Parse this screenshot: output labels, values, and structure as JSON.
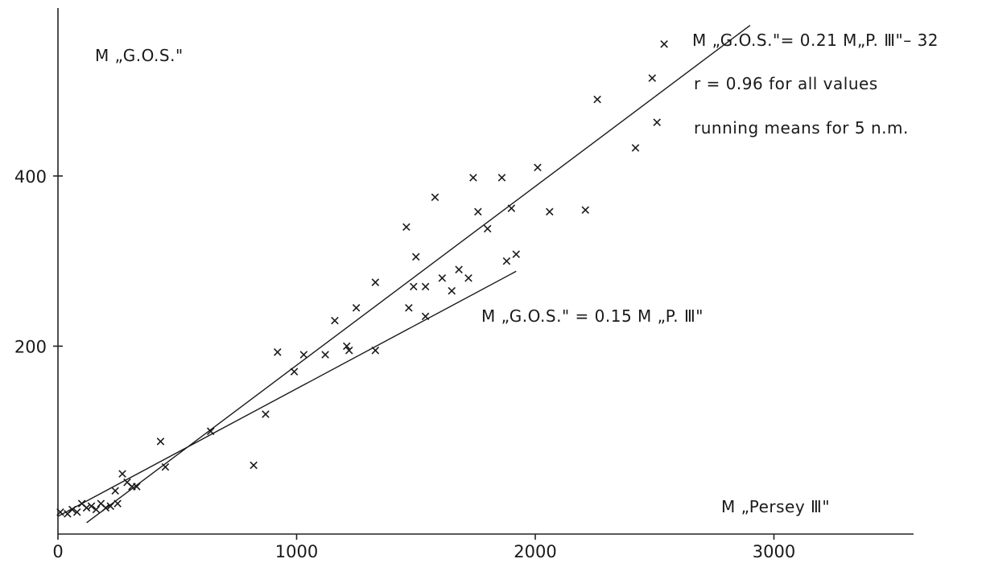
{
  "chart_data": {
    "type": "scatter",
    "title": "",
    "xlabel": "M „Persey Ⅲ\"",
    "ylabel": "M „G.O.S.\"",
    "xlim": [
      0,
      3900
    ],
    "ylim": [
      -30,
      600
    ],
    "x_ticks": [
      {
        "value": 0,
        "label": "0"
      },
      {
        "value": 1000,
        "label": "1000"
      },
      {
        "value": 2000,
        "label": "2000"
      },
      {
        "value": 3000,
        "label": "3000"
      }
    ],
    "y_ticks": [
      {
        "value": 200,
        "label": "200"
      },
      {
        "value": 400,
        "label": "400"
      }
    ],
    "grid": false,
    "series": [
      {
        "marker": "x",
        "points": [
          [
            10,
            5
          ],
          [
            40,
            3
          ],
          [
            60,
            8
          ],
          [
            80,
            5
          ],
          [
            100,
            15
          ],
          [
            120,
            10
          ],
          [
            140,
            12
          ],
          [
            160,
            8
          ],
          [
            180,
            15
          ],
          [
            200,
            10
          ],
          [
            220,
            12
          ],
          [
            240,
            30
          ],
          [
            250,
            15
          ],
          [
            270,
            50
          ],
          [
            290,
            40
          ],
          [
            310,
            35
          ],
          [
            330,
            35
          ],
          [
            430,
            88
          ],
          [
            450,
            58
          ],
          [
            640,
            100
          ],
          [
            820,
            60
          ],
          [
            870,
            120
          ],
          [
            920,
            193
          ],
          [
            990,
            170
          ],
          [
            1030,
            190
          ],
          [
            1120,
            190
          ],
          [
            1160,
            230
          ],
          [
            1210,
            200
          ],
          [
            1220,
            195
          ],
          [
            1250,
            245
          ],
          [
            1330,
            275
          ],
          [
            1330,
            195
          ],
          [
            1460,
            340
          ],
          [
            1470,
            245
          ],
          [
            1490,
            270
          ],
          [
            1500,
            305
          ],
          [
            1540,
            270
          ],
          [
            1540,
            235
          ],
          [
            1580,
            375
          ],
          [
            1610,
            280
          ],
          [
            1650,
            265
          ],
          [
            1680,
            290
          ],
          [
            1720,
            280
          ],
          [
            1740,
            398
          ],
          [
            1760,
            358
          ],
          [
            1800,
            338
          ],
          [
            1860,
            398
          ],
          [
            1880,
            300
          ],
          [
            1900,
            362
          ],
          [
            1920,
            308
          ],
          [
            2010,
            410
          ],
          [
            2060,
            358
          ],
          [
            2210,
            360
          ],
          [
            2260,
            490
          ],
          [
            2420,
            433
          ],
          [
            2490,
            515
          ],
          [
            2510,
            463
          ],
          [
            2540,
            555
          ]
        ]
      }
    ],
    "fit_lines": [
      {
        "x": [
          120,
          2900
        ],
        "y": [
          -7.5,
          577
        ]
      },
      {
        "x": [
          0,
          1920
        ],
        "y": [
          0,
          288
        ]
      }
    ],
    "annotations": {
      "y_axis_label": "M „G.O.S.\"",
      "x_axis_label": "M „Persey Ⅲ\"",
      "eq1": "M „G.O.S.\"= 0.21 M„P. Ⅲ\"– 32",
      "eq1_r": "r = 0.96  for all values",
      "eq1_note": "running  means for 5 n.m.",
      "eq2": "M „G.O.S.\" = 0.15 M „P. Ⅲ\""
    }
  }
}
